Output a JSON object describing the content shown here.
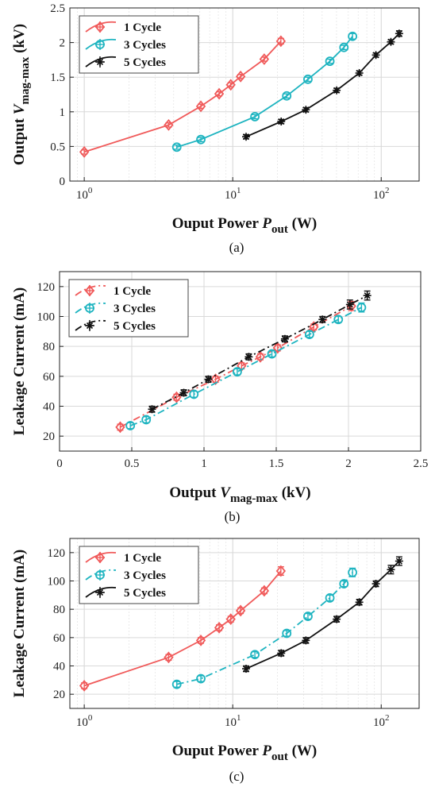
{
  "chart_data": [
    {
      "type": "line",
      "panel": "(a)",
      "xscale": "log",
      "xlim": [
        0.8,
        180
      ],
      "ylim": [
        0,
        2.5
      ],
      "xticks": [
        1,
        10,
        100
      ],
      "xtick_labels": [
        "10^0",
        "10^1",
        "10^2"
      ],
      "yticks": [
        0,
        0.5,
        1,
        1.5,
        2,
        2.5
      ],
      "ytick_labels": [
        "0",
        "0.5",
        "1",
        "1.5",
        "2",
        "2.5"
      ],
      "xlabel": {
        "main": "Ouput Power ",
        "sym": "P",
        "sub": "out",
        "unit": " (W)"
      },
      "ylabel": {
        "main": "Output ",
        "sym": "V",
        "sub": "mag-max",
        "unit": " (kV)"
      },
      "grid": true,
      "legend_position": "top-left",
      "series": [
        {
          "name": "1 Cycle",
          "color": "#f05a5a",
          "marker": "diamond",
          "dash": "solid",
          "x": [
            1.0,
            3.7,
            6.1,
            8.1,
            9.7,
            11.3,
            16.3,
            21.1
          ],
          "y": [
            0.42,
            0.81,
            1.08,
            1.26,
            1.39,
            1.51,
            1.76,
            2.02
          ],
          "err": [
            0.03,
            0.03,
            0.03,
            0.03,
            0.03,
            0.03,
            0.03,
            0.04
          ]
        },
        {
          "name": "3 Cycles",
          "color": "#1eb4c0",
          "marker": "circle",
          "dash": "solid",
          "x": [
            4.2,
            6.1,
            14.1,
            23.1,
            32.1,
            45.1,
            56.1,
            64.1
          ],
          "y": [
            0.49,
            0.6,
            0.93,
            1.23,
            1.47,
            1.73,
            1.93,
            2.09
          ],
          "err": [
            0.03,
            0.03,
            0.03,
            0.03,
            0.03,
            0.03,
            0.03,
            0.04
          ]
        },
        {
          "name": "5 Cycles",
          "color": "#111111",
          "marker": "star",
          "dash": "solid",
          "x": [
            12.3,
            21.2,
            31.1,
            50.1,
            71.2,
            92.1,
            116.2,
            132.1
          ],
          "y": [
            0.64,
            0.86,
            1.03,
            1.31,
            1.56,
            1.82,
            2.01,
            2.13
          ],
          "err": [
            0.03,
            0.03,
            0.03,
            0.03,
            0.03,
            0.03,
            0.03,
            0.04
          ]
        }
      ]
    },
    {
      "type": "line",
      "panel": "(b)",
      "xscale": "linear",
      "xlim": [
        0,
        2.5
      ],
      "ylim": [
        10,
        130
      ],
      "xticks": [
        0,
        0.5,
        1,
        1.5,
        2,
        2.5
      ],
      "xtick_labels": [
        "0",
        "0.5",
        "1",
        "1.5",
        "2",
        "2.5"
      ],
      "yticks": [
        20,
        40,
        60,
        80,
        100,
        120
      ],
      "ytick_labels": [
        "20",
        "40",
        "60",
        "80",
        "100",
        "120"
      ],
      "xlabel": {
        "main": "Output ",
        "sym": "V",
        "sub": "mag-max",
        "unit": " (kV)"
      },
      "ylabel": {
        "main": "Leakage Current (mA)",
        "sym": "",
        "sub": "",
        "unit": ""
      },
      "grid": true,
      "legend_position": "top-left",
      "series": [
        {
          "name": "1 Cycle",
          "color": "#f05a5a",
          "marker": "diamond",
          "dash": "dashdot",
          "x": [
            0.42,
            0.81,
            1.08,
            1.26,
            1.39,
            1.51,
            1.76,
            2.02
          ],
          "y": [
            26,
            46,
            58,
            67,
            73,
            79,
            93,
            107
          ],
          "err": [
            2,
            2,
            2,
            2,
            2,
            2,
            2,
            3
          ]
        },
        {
          "name": "3 Cycles",
          "color": "#1eb4c0",
          "marker": "circle",
          "dash": "dashdot",
          "x": [
            0.49,
            0.6,
            0.93,
            1.23,
            1.47,
            1.73,
            1.93,
            2.09
          ],
          "y": [
            27,
            31,
            48,
            63,
            75,
            88,
            98,
            106
          ],
          "err": [
            2,
            2,
            2,
            2,
            2,
            2,
            2,
            3
          ]
        },
        {
          "name": "5 Cycles",
          "color": "#111111",
          "marker": "star",
          "dash": "dashdot",
          "x": [
            0.64,
            0.86,
            1.03,
            1.31,
            1.56,
            1.82,
            2.01,
            2.13
          ],
          "y": [
            38,
            49,
            58,
            73,
            85,
            98,
            108,
            114
          ],
          "err": [
            2,
            2,
            2,
            2,
            2,
            2,
            3,
            3
          ]
        }
      ]
    },
    {
      "type": "line",
      "panel": "(c)",
      "xscale": "log",
      "xlim": [
        0.8,
        180
      ],
      "ylim": [
        10,
        130
      ],
      "xticks": [
        1,
        10,
        100
      ],
      "xtick_labels": [
        "10^0",
        "10^1",
        "10^2"
      ],
      "yticks": [
        20,
        40,
        60,
        80,
        100,
        120
      ],
      "ytick_labels": [
        "20",
        "40",
        "60",
        "80",
        "100",
        "120"
      ],
      "xlabel": {
        "main": "Ouput Power ",
        "sym": "P",
        "sub": "out",
        "unit": " (W)"
      },
      "ylabel": {
        "main": "Leakage Current (mA)",
        "sym": "",
        "sub": "",
        "unit": ""
      },
      "grid": true,
      "legend_position": "top-left",
      "series": [
        {
          "name": "1 Cycle",
          "color": "#f05a5a",
          "marker": "diamond",
          "dash": "solid",
          "x": [
            1.0,
            3.7,
            6.1,
            8.1,
            9.7,
            11.3,
            16.3,
            21.1
          ],
          "y": [
            26,
            46,
            58,
            67,
            73,
            79,
            93,
            107
          ],
          "err": [
            2,
            2,
            2,
            2,
            2,
            2,
            2,
            3
          ]
        },
        {
          "name": "3 Cycles",
          "color": "#1eb4c0",
          "marker": "circle",
          "dash": "dashdot",
          "x": [
            4.2,
            6.1,
            14.1,
            23.1,
            32.1,
            45.1,
            56.1,
            64.1
          ],
          "y": [
            27,
            31,
            48,
            63,
            75,
            88,
            98,
            106
          ],
          "err": [
            2,
            2,
            2,
            2,
            2,
            2,
            2,
            3
          ]
        },
        {
          "name": "5 Cycles",
          "color": "#111111",
          "marker": "star",
          "dash": "solid",
          "x": [
            12.3,
            21.2,
            31.1,
            50.1,
            71.2,
            92.1,
            116.2,
            132.1
          ],
          "y": [
            38,
            49,
            58,
            73,
            85,
            98,
            108,
            114
          ],
          "err": [
            2,
            2,
            2,
            2,
            2,
            2,
            3,
            3
          ]
        }
      ]
    }
  ]
}
